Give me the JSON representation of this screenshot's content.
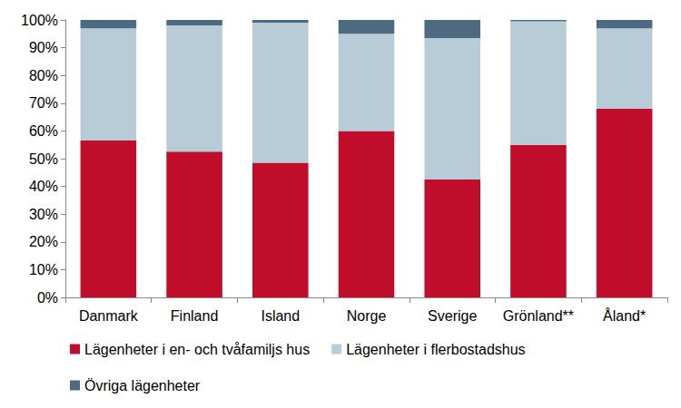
{
  "chart_data": {
    "type": "bar",
    "stacked": true,
    "grid": false,
    "legend": "bottom",
    "categories": [
      "Danmark",
      "Finland",
      "Island",
      "Norge",
      "Sverige",
      "Grönland**",
      "Åland*"
    ],
    "series": [
      {
        "name": "Lägenheter i en- och tvåfamiljs hus",
        "color": "#c00d2b",
        "values": [
          56.5,
          52.5,
          48.5,
          60,
          42.5,
          55,
          68
        ]
      },
      {
        "name": "Lägenheter i flerbostadshus",
        "color": "#b7ccd7",
        "values": [
          40.5,
          45.5,
          50.5,
          35,
          51,
          44.5,
          29
        ]
      },
      {
        "name": "Övriga lägenheter",
        "color": "#4d6a80",
        "values": [
          3,
          2,
          1,
          5,
          6.5,
          0.5,
          3
        ]
      }
    ],
    "ylim": [
      0,
      100
    ],
    "yticks": [
      {
        "value": 0,
        "label": "0%"
      },
      {
        "value": 10,
        "label": "10%"
      },
      {
        "value": 20,
        "label": "20%"
      },
      {
        "value": 30,
        "label": "30%"
      },
      {
        "value": 40,
        "label": "40%"
      },
      {
        "value": 50,
        "label": "50%"
      },
      {
        "value": 60,
        "label": "60%"
      },
      {
        "value": 70,
        "label": "70%"
      },
      {
        "value": 80,
        "label": "80%"
      },
      {
        "value": 90,
        "label": "90%"
      },
      {
        "value": 100,
        "label": "100%"
      }
    ]
  }
}
